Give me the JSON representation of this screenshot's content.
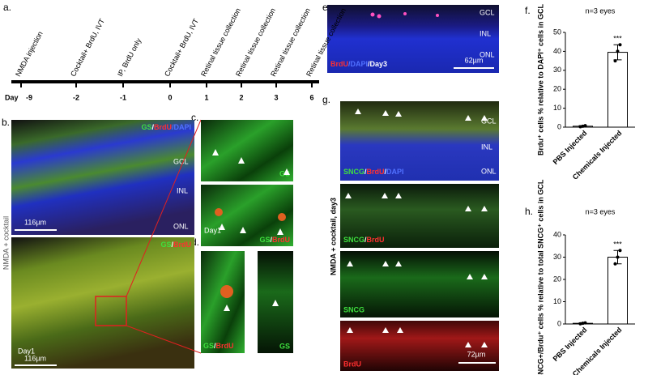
{
  "panels": {
    "a": "a.",
    "b": "b.",
    "c": "c.",
    "d": "d.",
    "e": "e.",
    "f": "f.",
    "g": "g.",
    "h": "h."
  },
  "timeline": {
    "day_label": "Day",
    "days": [
      "-9",
      "-2",
      "-1",
      "0",
      "1",
      "2",
      "3",
      "6"
    ],
    "events": [
      "NMDA injection",
      "Cocktail+ BrdU, IVT",
      "IP, BrdU only",
      "Cocktail+ BrdU, IVT",
      "Retinal tissue collection",
      "Retinal tissue collection",
      "Retinal tissue collection",
      "Retinal tissue collection"
    ]
  },
  "b": {
    "side_label": "NMDA + cocktail",
    "top_stain": [
      "GS",
      "/",
      "BrdU",
      "/DAPI"
    ],
    "layers": [
      "GCL",
      "INL",
      "ONL"
    ],
    "top_scale": "116µm",
    "bottom_stain": [
      "GS",
      "/",
      "BrdU"
    ],
    "bottom_day": "Day1",
    "bottom_scale": "116µm"
  },
  "c": {
    "top_stain": "GS",
    "bottom_day": "Day1",
    "bottom_stain": [
      "GS",
      "/",
      "BrdU"
    ]
  },
  "d": {
    "left_stain": [
      "GS",
      "/",
      "BrdU"
    ],
    "right_stain": "GS"
  },
  "e": {
    "layers": [
      "GCL",
      "INL",
      "ONL"
    ],
    "stain": [
      "BrdU",
      "/DAPI",
      "/Day3"
    ],
    "scale": "62µm"
  },
  "g": {
    "side_label": "NMDA + cocktail, day3",
    "layers": [
      "GCL",
      "INL",
      "ONL"
    ],
    "stains": [
      [
        "SNCG",
        "/",
        "BrdU",
        "/",
        "DAPI"
      ],
      [
        "SNCG",
        "/",
        "BrdU"
      ],
      [
        "SNCG"
      ],
      [
        "BrdU"
      ]
    ],
    "scale": "72µm"
  },
  "chart_data": [
    {
      "type": "bar",
      "title": "n=3 eyes",
      "ylabel": "Brdu⁺ cells % relative to DAPI⁺ cells in GCL",
      "categories": [
        "PBS Injected",
        "Chemicals Injected"
      ],
      "values": [
        0.5,
        39.5
      ],
      "errors": [
        0.3,
        4
      ],
      "points": [
        [
          0.2,
          0.5,
          0.8
        ],
        [
          35,
          40,
          43.5
        ]
      ],
      "annotation": "***",
      "color": "#ffffff",
      "ylim": [
        0,
        50
      ],
      "yticks": [
        0,
        10,
        20,
        30,
        40,
        50
      ]
    },
    {
      "type": "bar",
      "title": "n=3 eyes",
      "ylabel": "SNCG+/Brdu⁺ cells % relative to total SNCG⁺ cells in GCL",
      "categories": [
        "PBS Injected",
        "Chemicals Injected"
      ],
      "values": [
        0.3,
        30
      ],
      "errors": [
        0.2,
        3
      ],
      "points": [
        [
          0.1,
          0.3,
          0.5
        ],
        [
          27,
          30,
          33
        ]
      ],
      "annotation": "***",
      "color": "#ffffff",
      "ylim": [
        0,
        40
      ],
      "yticks": [
        0,
        10,
        20,
        30,
        40
      ]
    }
  ]
}
